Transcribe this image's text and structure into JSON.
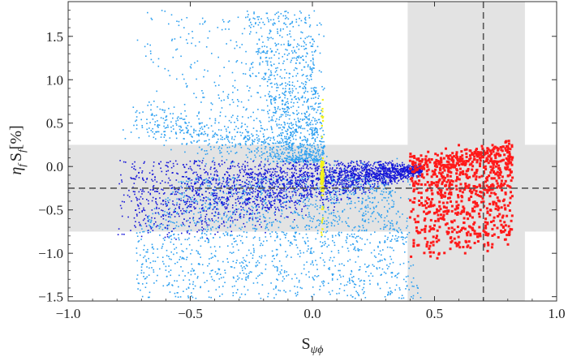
{
  "chart_data": {
    "type": "scatter",
    "xlabel_main": "S",
    "xlabel_sub": "ψϕ",
    "ylabel": {
      "eta": "η",
      "eta_sub": "f",
      "s": "S",
      "s_sub": "f",
      "unit": "[%]"
    },
    "xlim": [
      -1.0,
      1.0
    ],
    "ylim": [
      -1.55,
      1.9
    ],
    "x_ticks": [
      -1.0,
      -0.5,
      0.0,
      0.5,
      1.0
    ],
    "x_tick_labels": [
      "−1.0",
      "−0.5",
      "0.0",
      "0.5",
      "1.0"
    ],
    "y_ticks": [
      -1.5,
      -1.0,
      -0.5,
      0.0,
      0.5,
      1.0,
      1.5
    ],
    "y_tick_labels": [
      "−1.5",
      "−1.0",
      "−0.5",
      "0.0",
      "0.5",
      "1.0",
      "1.5"
    ],
    "shaded_bands": {
      "x_range": [
        0.39,
        0.87
      ],
      "y_range": [
        -0.75,
        0.25
      ]
    },
    "reference_lines": {
      "x": 0.7,
      "y": -0.25
    },
    "colors": {
      "light_blue": "#2b9ff0",
      "dark_blue": "#1515d8",
      "red": "#ff1a1a",
      "yellow": "#f2f21a",
      "band": "#e3e3e3",
      "dashed": "#555555"
    },
    "series": [
      {
        "color": "light_blue",
        "regions": [
          {
            "x": [
              -0.7,
              0.4
            ],
            "y": [
              0.0,
              1.8
            ]
          },
          {
            "x": [
              -0.7,
              0.45
            ],
            "y": [
              -1.5,
              -0.1
            ]
          }
        ]
      },
      {
        "color": "dark_blue",
        "regions": [
          {
            "x": [
              -0.8,
              0.45
            ],
            "y": [
              -0.8,
              0.05
            ]
          }
        ]
      },
      {
        "color": "red",
        "regions": [
          {
            "x": [
              0.4,
              0.83
            ],
            "y": [
              -1.1,
              0.28
            ]
          }
        ]
      },
      {
        "color": "yellow",
        "x_center": 0.04,
        "regions": [
          {
            "x": [
              0.035,
              0.045
            ],
            "y": [
              -0.8,
              0.85
            ]
          }
        ]
      }
    ]
  }
}
